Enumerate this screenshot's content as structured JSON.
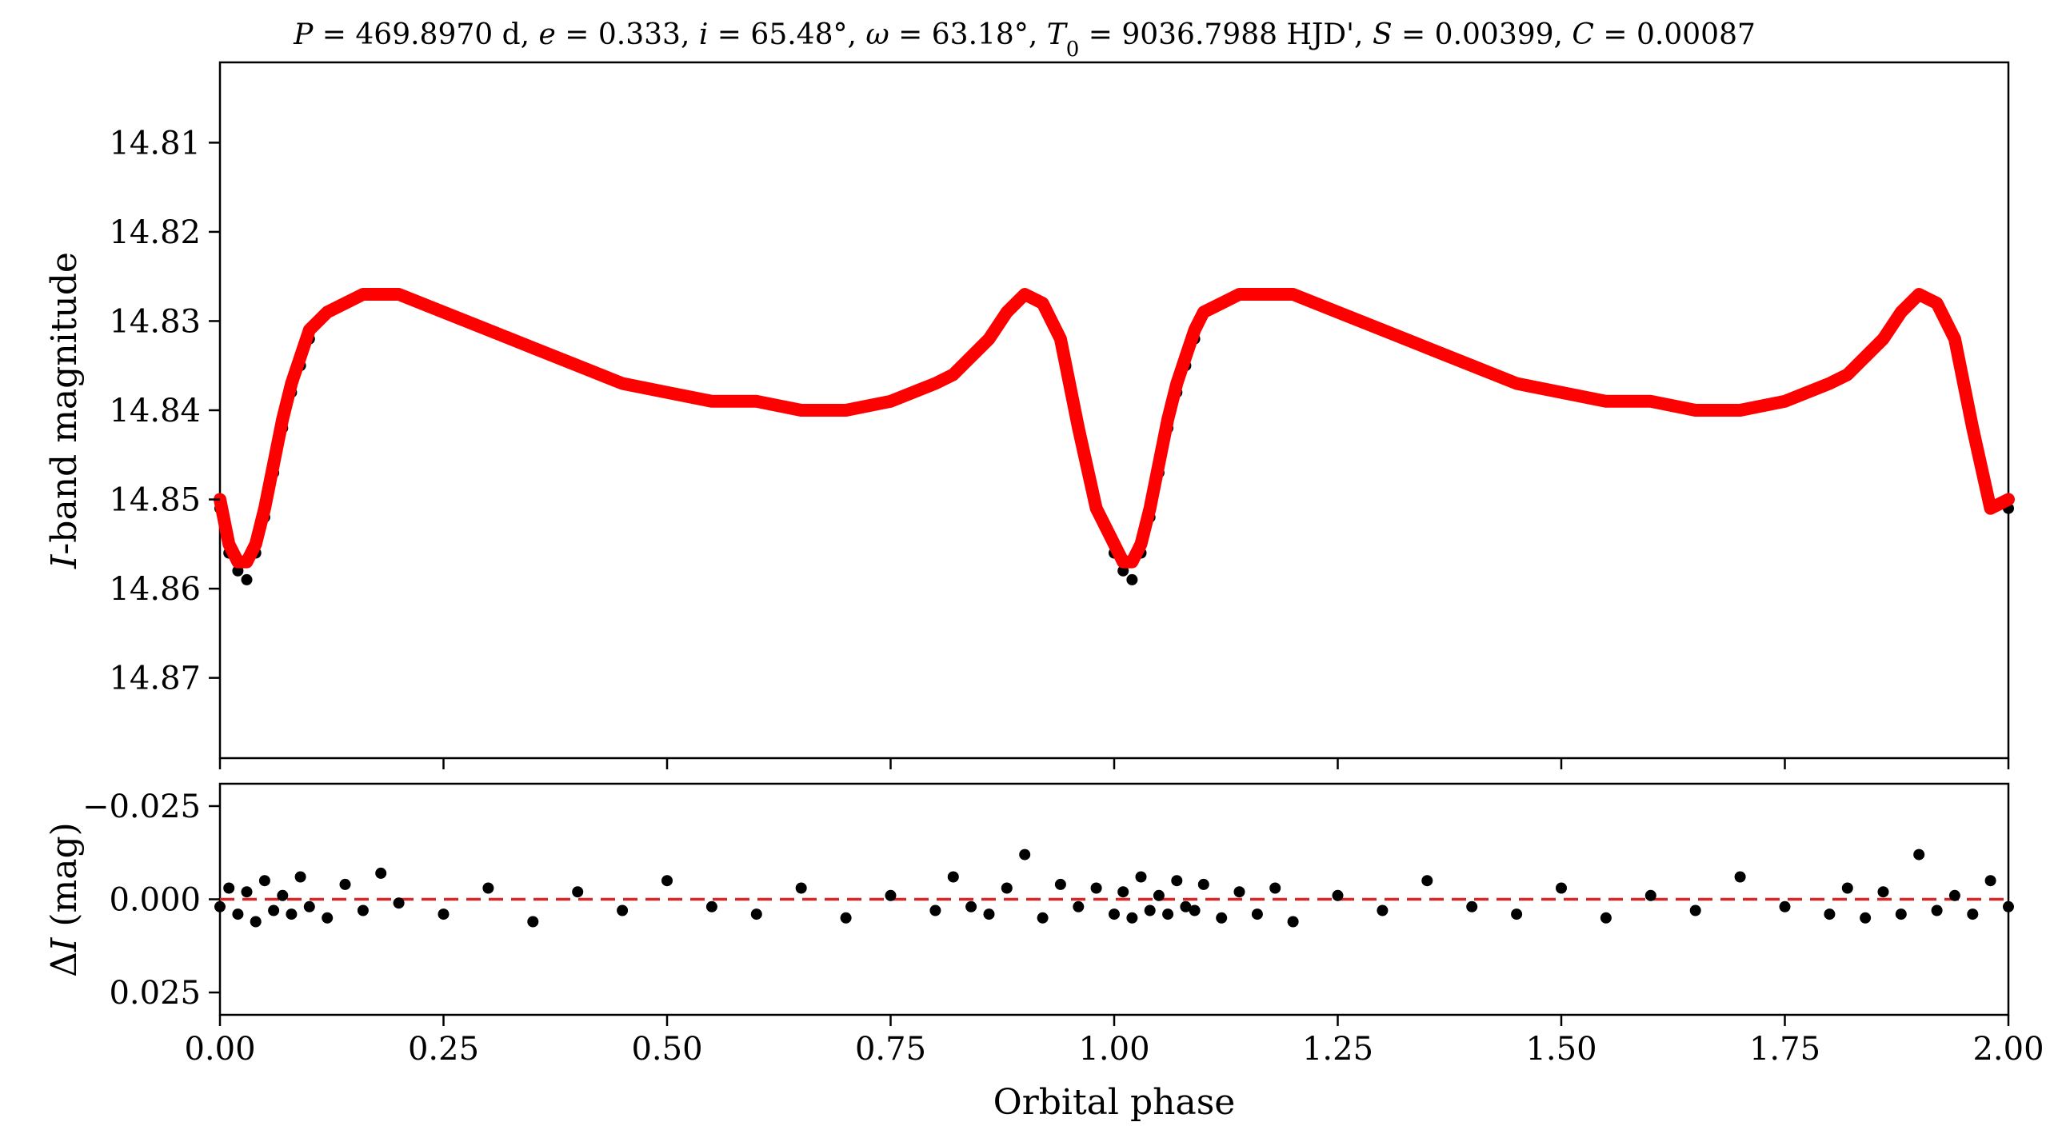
{
  "title": {
    "parts": [
      {
        "t": "P",
        "i": true
      },
      {
        "t": " = 469.8970 d, "
      },
      {
        "t": "e",
        "i": true
      },
      {
        "t": " = 0.333, "
      },
      {
        "t": "i",
        "i": true
      },
      {
        "t": " = 65.48°, "
      },
      {
        "t": "ω",
        "i": true
      },
      {
        "t": " = 63.18°, "
      },
      {
        "t": "T",
        "i": true
      },
      {
        "t": "0",
        "sub": true
      },
      {
        "t": " = 9036.7988 HJD', "
      },
      {
        "t": "S",
        "i": true
      },
      {
        "t": " = 0.00399, "
      },
      {
        "t": "C",
        "i": true
      },
      {
        "t": " = 0.00087"
      }
    ]
  },
  "x_axis": {
    "label": "Orbital phase",
    "range": [
      0.0,
      2.0
    ],
    "ticks": [
      0.0,
      0.25,
      0.5,
      0.75,
      1.0,
      1.25,
      1.5,
      1.75,
      2.0
    ],
    "tick_labels": [
      "0.00",
      "0.25",
      "0.50",
      "0.75",
      "1.00",
      "1.25",
      "1.50",
      "1.75",
      "2.00"
    ]
  },
  "top_panel": {
    "ylabel_italic": "I",
    "ylabel_rest": "-band magnitude",
    "ylim": [
      14.879,
      14.801
    ],
    "inverted": true,
    "yticks": [
      14.81,
      14.82,
      14.83,
      14.84,
      14.85,
      14.86,
      14.87
    ],
    "ytick_labels": [
      "14.81",
      "14.82",
      "14.83",
      "14.84",
      "14.85",
      "14.86",
      "14.87"
    ]
  },
  "bottom_panel": {
    "ylabel_prefix": "Δ",
    "ylabel_italic": "I",
    "ylabel_rest": " (mag)",
    "ylim": [
      0.031,
      -0.031
    ],
    "inverted": true,
    "yticks": [
      -0.025,
      0.0,
      0.025
    ],
    "ytick_labels": [
      "−0.025",
      "0.000",
      "0.025"
    ],
    "zero_line": 0.0
  },
  "colors": {
    "points": "#000000",
    "model": "#ff0000",
    "zero_line": "#d62728",
    "axes": "#000000"
  },
  "chart_data": {
    "type": "scatter",
    "series": [
      {
        "kind": "observed",
        "x": [
          0.0,
          0.01,
          0.02,
          0.03,
          0.04,
          0.05,
          0.06,
          0.07,
          0.08,
          0.09,
          0.1,
          0.12,
          0.14,
          0.16,
          0.18,
          0.2,
          0.25,
          0.3,
          0.35,
          0.4,
          0.45,
          0.5,
          0.55,
          0.6,
          0.65,
          0.7,
          0.75,
          0.8,
          0.82,
          0.84,
          0.86,
          0.88,
          0.9,
          0.92,
          0.94,
          0.96,
          0.98,
          1.0,
          1.01,
          1.02,
          1.03,
          1.04,
          1.05,
          1.06,
          1.07,
          1.08,
          1.09,
          1.1,
          1.12,
          1.14,
          1.16,
          1.18,
          1.2,
          1.25,
          1.3,
          1.35,
          1.4,
          1.45,
          1.5,
          1.55,
          1.6,
          1.65,
          1.7,
          1.75,
          1.8,
          1.82,
          1.84,
          1.86,
          1.88,
          1.9,
          1.92,
          1.94,
          1.96,
          1.98,
          2.0
        ],
        "y": [
          14.851,
          14.856,
          14.858,
          14.859,
          14.856,
          14.852,
          14.847,
          14.842,
          14.838,
          14.835,
          14.832,
          14.829,
          14.828,
          14.827,
          14.827,
          14.827,
          14.829,
          14.831,
          14.833,
          14.835,
          14.837,
          14.838,
          14.839,
          14.839,
          14.84,
          14.84,
          14.839,
          14.837,
          14.836,
          14.834,
          14.832,
          14.829,
          14.827,
          14.828,
          14.832,
          14.842,
          14.851,
          14.856,
          14.858,
          14.859,
          14.856,
          14.852,
          14.847,
          14.842,
          14.838,
          14.835,
          14.832,
          14.829,
          14.828,
          14.827,
          14.827,
          14.827,
          14.827,
          14.829,
          14.831,
          14.833,
          14.835,
          14.837,
          14.838,
          14.839,
          14.839,
          14.84,
          14.84,
          14.839,
          14.837,
          14.836,
          14.834,
          14.832,
          14.829,
          14.827,
          14.828,
          14.832,
          14.842,
          14.851,
          14.851
        ],
        "residual_y": [
          0.002,
          -0.003,
          0.004,
          -0.002,
          0.006,
          -0.005,
          0.003,
          -0.001,
          0.004,
          -0.006,
          0.002,
          0.005,
          -0.004,
          0.003,
          -0.007,
          0.001,
          0.004,
          -0.003,
          0.006,
          -0.002,
          0.003,
          -0.005,
          0.002,
          0.004,
          -0.003,
          0.005,
          -0.001,
          0.003,
          -0.006,
          0.002,
          0.004,
          -0.003,
          -0.012,
          0.005,
          -0.004,
          0.002,
          -0.003,
          0.004,
          -0.002,
          0.005,
          -0.006,
          0.003,
          -0.001,
          0.004,
          -0.005,
          0.002,
          0.003,
          -0.004,
          0.005,
          -0.002,
          0.004,
          -0.003,
          0.006,
          -0.001,
          0.003,
          -0.005,
          0.002,
          0.004,
          -0.003,
          0.005,
          -0.001,
          0.003,
          -0.006,
          0.002,
          0.004,
          -0.003,
          0.005,
          -0.002,
          0.004,
          -0.012,
          0.003,
          -0.001,
          0.004,
          -0.005,
          0.002
        ]
      },
      {
        "kind": "model",
        "x": [
          0.0,
          0.01,
          0.02,
          0.03,
          0.04,
          0.05,
          0.06,
          0.07,
          0.08,
          0.09,
          0.1,
          0.12,
          0.14,
          0.16,
          0.18,
          0.2,
          0.25,
          0.3,
          0.35,
          0.4,
          0.45,
          0.5,
          0.55,
          0.6,
          0.65,
          0.7,
          0.75,
          0.8,
          0.82,
          0.84,
          0.86,
          0.88,
          0.9,
          0.92,
          0.94,
          0.96,
          0.98,
          1.0,
          1.01,
          1.02,
          1.03,
          1.04,
          1.05,
          1.06,
          1.07,
          1.08,
          1.09,
          1.1,
          1.12,
          1.14,
          1.16,
          1.18,
          1.2,
          1.25,
          1.3,
          1.35,
          1.4,
          1.45,
          1.5,
          1.55,
          1.6,
          1.65,
          1.7,
          1.75,
          1.8,
          1.82,
          1.84,
          1.86,
          1.88,
          1.9,
          1.92,
          1.94,
          1.96,
          1.98,
          2.0
        ],
        "y": [
          14.85,
          14.855,
          14.857,
          14.857,
          14.855,
          14.851,
          14.846,
          14.841,
          14.837,
          14.834,
          14.831,
          14.829,
          14.828,
          14.827,
          14.827,
          14.827,
          14.829,
          14.831,
          14.833,
          14.835,
          14.837,
          14.838,
          14.839,
          14.839,
          14.84,
          14.84,
          14.839,
          14.837,
          14.836,
          14.834,
          14.832,
          14.829,
          14.827,
          14.828,
          14.832,
          14.842,
          14.851,
          14.855,
          14.857,
          14.857,
          14.855,
          14.851,
          14.846,
          14.841,
          14.837,
          14.834,
          14.831,
          14.829,
          14.828,
          14.827,
          14.827,
          14.827,
          14.827,
          14.829,
          14.831,
          14.833,
          14.835,
          14.837,
          14.838,
          14.839,
          14.839,
          14.84,
          14.84,
          14.839,
          14.837,
          14.836,
          14.834,
          14.832,
          14.829,
          14.827,
          14.828,
          14.832,
          14.842,
          14.851,
          14.85
        ]
      }
    ],
    "xlabel": "Orbital phase",
    "xlim": [
      0.0,
      2.0
    ],
    "top_ylim": [
      14.879,
      14.801
    ],
    "bottom_ylim": [
      0.031,
      -0.031
    ],
    "grid": false,
    "legend": "none"
  }
}
